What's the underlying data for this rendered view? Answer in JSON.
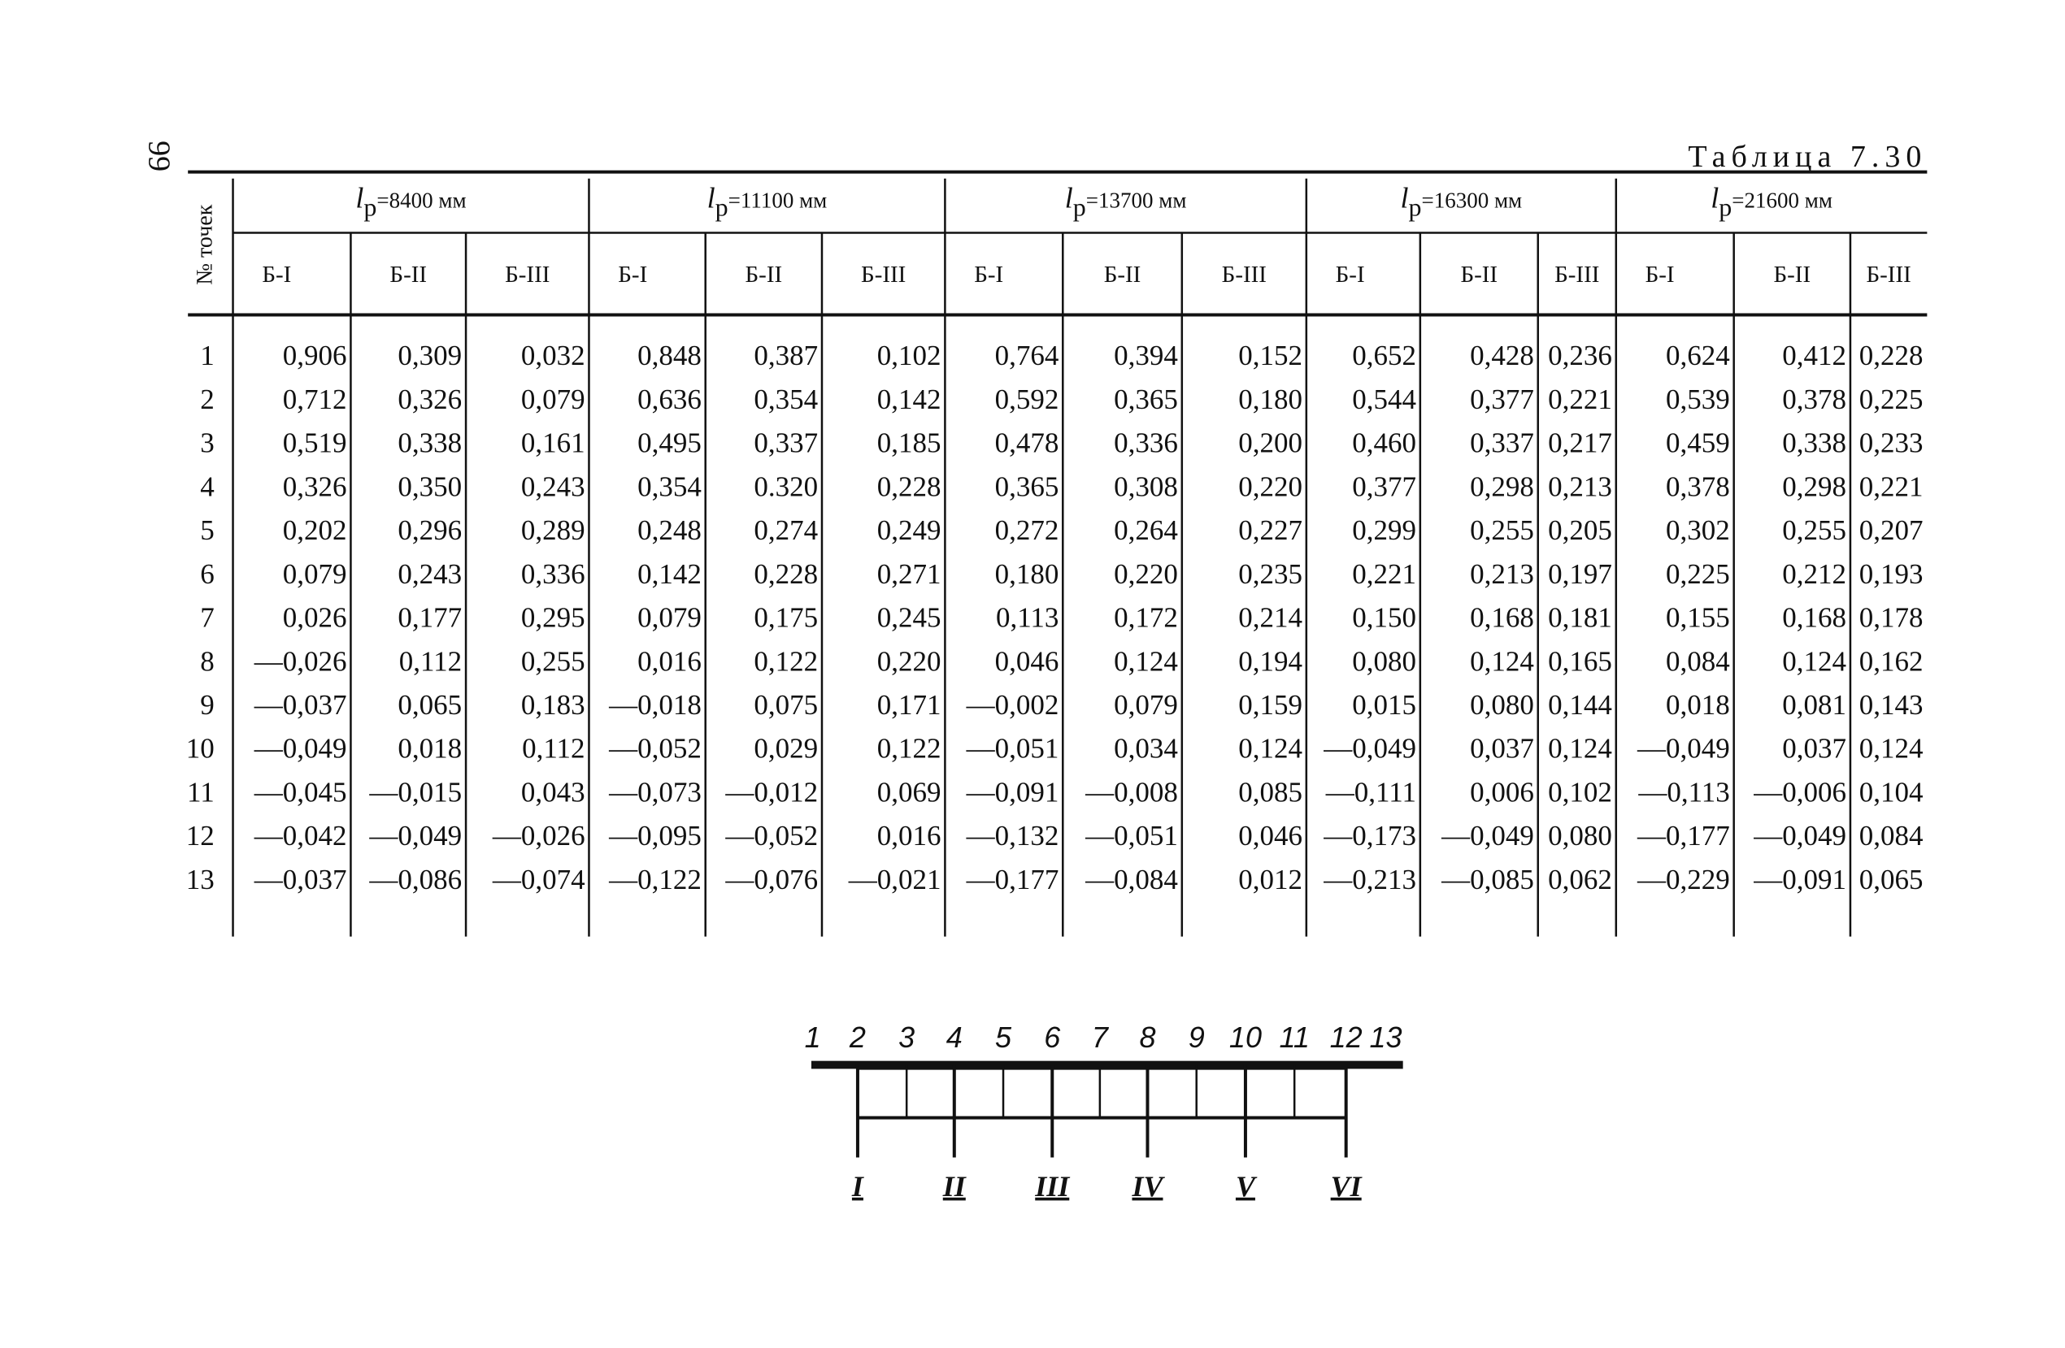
{
  "page_number": "99",
  "title": "Таблица 7.30",
  "table": {
    "row_header": "№ точек",
    "groups": [
      {
        "symbol": "l",
        "sub": "р",
        "rest": "=8400 мм",
        "columns": [
          "Б-I",
          "Б-II",
          "Б-III"
        ]
      },
      {
        "symbol": "l",
        "sub": "р",
        "rest": "=11100 мм",
        "columns": [
          "Б-I",
          "Б-II",
          "Б-III"
        ]
      },
      {
        "symbol": "l",
        "sub": "р",
        "rest": "=13700 мм",
        "columns": [
          "Б-I",
          "Б-II",
          "Б-III"
        ]
      },
      {
        "symbol": "l",
        "sub": "р",
        "rest": "=16300 мм",
        "columns": [
          "Б-I",
          "Б-II",
          "Б-III"
        ]
      },
      {
        "symbol": "l",
        "sub": "р",
        "rest": "=21600 мм",
        "columns": [
          "Б-I",
          "Б-II",
          "Б-III"
        ]
      }
    ],
    "rows": [
      {
        "point": "1",
        "cells": [
          "0,906",
          "0,309",
          "0,032",
          "0,848",
          "0,387",
          "0,102",
          "0,764",
          "0,394",
          "0,152",
          "0,652",
          "0,428",
          "0,236",
          "0,624",
          "0,412",
          "0,228"
        ]
      },
      {
        "point": "2",
        "cells": [
          "0,712",
          "0,326",
          "0,079",
          "0,636",
          "0,354",
          "0,142",
          "0,592",
          "0,365",
          "0,180",
          "0,544",
          "0,377",
          "0,221",
          "0,539",
          "0,378",
          "0,225"
        ]
      },
      {
        "point": "3",
        "cells": [
          "0,519",
          "0,338",
          "0,161",
          "0,495",
          "0,337",
          "0,185",
          "0,478",
          "0,336",
          "0,200",
          "0,460",
          "0,337",
          "0,217",
          "0,459",
          "0,338",
          "0,233"
        ]
      },
      {
        "point": "4",
        "cells": [
          "0,326",
          "0,350",
          "0,243",
          "0,354",
          "0.320",
          "0,228",
          "0,365",
          "0,308",
          "0,220",
          "0,377",
          "0,298",
          "0,213",
          "0,378",
          "0,298",
          "0,221"
        ]
      },
      {
        "point": "5",
        "cells": [
          "0,202",
          "0,296",
          "0,289",
          "0,248",
          "0,274",
          "0,249",
          "0,272",
          "0,264",
          "0,227",
          "0,299",
          "0,255",
          "0,205",
          "0,302",
          "0,255",
          "0,207"
        ]
      },
      {
        "point": "6",
        "cells": [
          "0,079",
          "0,243",
          "0,336",
          "0,142",
          "0,228",
          "0,271",
          "0,180",
          "0,220",
          "0,235",
          "0,221",
          "0,213",
          "0,197",
          "0,225",
          "0,212",
          "0,193"
        ]
      },
      {
        "point": "7",
        "cells": [
          "0,026",
          "0,177",
          "0,295",
          "0,079",
          "0,175",
          "0,245",
          "0,113",
          "0,172",
          "0,214",
          "0,150",
          "0,168",
          "0,181",
          "0,155",
          "0,168",
          "0,178"
        ]
      },
      {
        "point": "8",
        "cells": [
          "—0,026",
          "0,112",
          "0,255",
          "0,016",
          "0,122",
          "0,220",
          "0,046",
          "0,124",
          "0,194",
          "0,080",
          "0,124",
          "0,165",
          "0,084",
          "0,124",
          "0,162"
        ]
      },
      {
        "point": "9",
        "cells": [
          "—0,037",
          "0,065",
          "0,183",
          "—0,018",
          "0,075",
          "0,171",
          "—0,002",
          "0,079",
          "0,159",
          "0,015",
          "0,080",
          "0,144",
          "0,018",
          "0,081",
          "0,143"
        ]
      },
      {
        "point": "10",
        "cells": [
          "—0,049",
          "0,018",
          "0,112",
          "—0,052",
          "0,029",
          "0,122",
          "—0,051",
          "0,034",
          "0,124",
          "—0,049",
          "0,037",
          "0,124",
          "—0,049",
          "0,037",
          "0,124"
        ]
      },
      {
        "point": "11",
        "cells": [
          "—0,045",
          "—0,015",
          "0,043",
          "—0,073",
          "—0,012",
          "0,069",
          "—0,091",
          "—0,008",
          "0,085",
          "—0,111",
          "0,006",
          "0,102",
          "—0,113",
          "—0,006",
          "0,104"
        ]
      },
      {
        "point": "12",
        "cells": [
          "—0,042",
          "—0,049",
          "—0,026",
          "—0,095",
          "—0,052",
          "0,016",
          "—0,132",
          "—0,051",
          "0,046",
          "—0,173",
          "—0,049",
          "0,080",
          "—0,177",
          "—0,049",
          "0,084"
        ]
      },
      {
        "point": "13",
        "cells": [
          "—0,037",
          "—0,086",
          "—0,074",
          "—0,122",
          "—0,076",
          "—0,021",
          "—0,177",
          "—0,084",
          "0,012",
          "—0,213",
          "—0,085",
          "0,062",
          "—0,229",
          "—0,091",
          "0,065"
        ]
      }
    ]
  },
  "diagram": {
    "points": [
      "1",
      "2",
      "3",
      "4",
      "5",
      "6",
      "7",
      "8",
      "9",
      "10",
      "11",
      "12",
      "13"
    ],
    "supports": [
      "I",
      "II",
      "III",
      "IV",
      "V",
      "VI"
    ]
  }
}
